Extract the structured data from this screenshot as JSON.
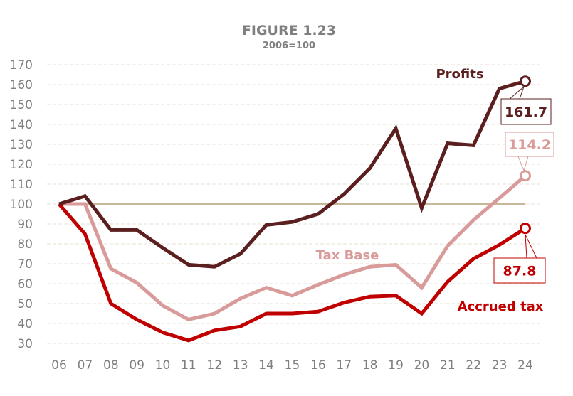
{
  "chart_data": {
    "type": "line",
    "title": "FIGURE 1.23",
    "subtitle": "2006=100",
    "xlabel": "",
    "ylabel": "",
    "ylim": [
      30,
      170
    ],
    "yticks": [
      30,
      40,
      50,
      60,
      70,
      80,
      90,
      100,
      110,
      120,
      130,
      140,
      150,
      160,
      170
    ],
    "categories": [
      "06",
      "07",
      "08",
      "09",
      "10",
      "11",
      "12",
      "13",
      "14",
      "15",
      "16",
      "17",
      "18",
      "19",
      "20",
      "21",
      "22",
      "23",
      "24"
    ],
    "grid": true,
    "reference_line": 100,
    "series": [
      {
        "name": "Profits",
        "color": "#5c1f1f",
        "values": [
          100,
          104,
          87,
          87,
          78,
          69.5,
          68.5,
          75,
          89.5,
          91,
          95,
          105,
          118,
          138,
          98,
          130.5,
          129.5,
          158,
          161.7
        ],
        "end_label": "161.7"
      },
      {
        "name": "Tax Base",
        "color": "#d99a9a",
        "values": [
          100,
          100,
          67.5,
          60.5,
          49,
          42,
          45,
          52.5,
          58,
          54,
          59.5,
          64.5,
          68.5,
          69.5,
          58,
          79,
          92,
          103,
          114.2
        ],
        "end_label": "114.2"
      },
      {
        "name": "Accrued tax",
        "color": "#c00000",
        "values": [
          100,
          85,
          50,
          42,
          35.5,
          31.5,
          36.5,
          38.5,
          45,
          45,
          46,
          50.5,
          53.5,
          54,
          45,
          61,
          72.5,
          79.5,
          87.8
        ],
        "end_label": "87.8"
      }
    ]
  }
}
